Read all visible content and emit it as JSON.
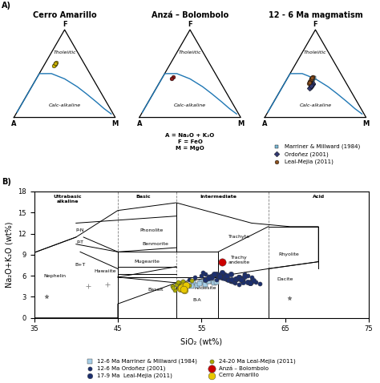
{
  "chart_data": [
    {
      "type": "ternary",
      "panel_label": "A)",
      "title": "Cerro Amarillo",
      "corner_labels": [
        "A",
        "F",
        "M"
      ],
      "field_labels": [
        "Tholeiitic",
        "Calc-alkaline"
      ],
      "boundary": {
        "a": [
          0.02,
          0.06,
          0.1,
          0.15,
          0.2,
          0.28,
          0.38,
          0.5,
          0.62,
          0.74,
          0.85,
          0.93,
          0.97
        ],
        "f": [
          0.04,
          0.1,
          0.18,
          0.27,
          0.35,
          0.44,
          0.5,
          0.5,
          0.46,
          0.38,
          0.26,
          0.14,
          0.06
        ],
        "m": [
          0.94,
          0.84,
          0.72,
          0.58,
          0.45,
          0.28,
          0.12,
          0.001,
          0.001,
          0.001,
          0.001,
          0.001,
          0.001
        ]
      },
      "series": [
        {
          "color": "#c8b000",
          "marker": "circle",
          "a": [
            0.28,
            0.3,
            0.27,
            0.29,
            0.31,
            0.28
          ],
          "f": [
            0.62,
            0.6,
            0.63,
            0.61,
            0.59,
            0.62
          ],
          "m": [
            0.1,
            0.1,
            0.1,
            0.1,
            0.1,
            0.1
          ]
        }
      ]
    },
    {
      "type": "ternary",
      "title": "Anzá – Bolombolo",
      "corner_labels": [
        "A",
        "F",
        "M"
      ],
      "field_labels": [
        "Tholeiitic",
        "Calc-alkaline"
      ],
      "note": "A = Na₂O + K₂O\nF = FeO\nM = MgO",
      "boundary": {
        "a": [
          0.02,
          0.06,
          0.1,
          0.15,
          0.2,
          0.28,
          0.38,
          0.5,
          0.62,
          0.74,
          0.85,
          0.93,
          0.97
        ],
        "f": [
          0.04,
          0.1,
          0.18,
          0.27,
          0.35,
          0.44,
          0.5,
          0.5,
          0.46,
          0.38,
          0.26,
          0.14,
          0.06
        ],
        "m": [
          0.94,
          0.84,
          0.72,
          0.58,
          0.45,
          0.28,
          0.12,
          0.001,
          0.001,
          0.001,
          0.001,
          0.001,
          0.001
        ]
      },
      "series": [
        {
          "color": "#8B1a1a",
          "marker": "circle",
          "a": [
            0.44,
            0.46
          ],
          "f": [
            0.46,
            0.44
          ],
          "m": [
            0.1,
            0.1
          ]
        }
      ]
    },
    {
      "type": "ternary",
      "title": "12 - 6 Ma magmatism",
      "corner_labels": [
        "A",
        "F",
        "M"
      ],
      "field_labels": [
        "Tholeiitic",
        "Calc-alkaline"
      ],
      "legend": "lower center",
      "boundary": {
        "a": [
          0.02,
          0.06,
          0.1,
          0.15,
          0.2,
          0.28,
          0.38,
          0.5,
          0.62,
          0.74,
          0.85,
          0.93,
          0.97
        ],
        "f": [
          0.04,
          0.1,
          0.18,
          0.27,
          0.35,
          0.44,
          0.5,
          0.5,
          0.46,
          0.38,
          0.26,
          0.14,
          0.06
        ],
        "m": [
          0.94,
          0.84,
          0.72,
          0.58,
          0.45,
          0.28,
          0.12,
          0.001,
          0.001,
          0.001,
          0.001,
          0.001,
          0.001
        ]
      },
      "series": [
        {
          "name": "Marriner & Millward (1984)",
          "color": "#7bb8d4",
          "marker": "square",
          "a": [
            0.32,
            0.34,
            0.3,
            0.33,
            0.35,
            0.31,
            0.36,
            0.29,
            0.33,
            0.34
          ],
          "f": [
            0.42,
            0.4,
            0.44,
            0.41,
            0.39,
            0.43,
            0.38,
            0.45,
            0.4,
            0.41
          ],
          "m": [
            0.26,
            0.26,
            0.26,
            0.26,
            0.26,
            0.26,
            0.26,
            0.26,
            0.27,
            0.25
          ]
        },
        {
          "name": "Ordoñez (2001)",
          "color": "#303870",
          "marker": "diamond",
          "a": [
            0.34,
            0.36,
            0.38,
            0.33,
            0.37,
            0.35,
            0.39,
            0.36
          ],
          "f": [
            0.38,
            0.36,
            0.34,
            0.39,
            0.35,
            0.37,
            0.33,
            0.36
          ],
          "m": [
            0.28,
            0.28,
            0.28,
            0.28,
            0.28,
            0.28,
            0.28,
            0.28
          ]
        },
        {
          "name": "Leal-Mejia (2011)",
          "color": "#8B5020",
          "marker": "circle",
          "a": [
            0.32,
            0.34,
            0.3,
            0.36,
            0.33,
            0.35,
            0.31,
            0.37,
            0.32,
            0.34,
            0.33,
            0.35,
            0.3,
            0.36,
            0.31
          ],
          "f": [
            0.44,
            0.42,
            0.46,
            0.4,
            0.43,
            0.41,
            0.45,
            0.39,
            0.44,
            0.42,
            0.43,
            0.41,
            0.46,
            0.4,
            0.45
          ],
          "m": [
            0.24,
            0.24,
            0.24,
            0.24,
            0.24,
            0.24,
            0.24,
            0.24,
            0.24,
            0.24,
            0.24,
            0.24,
            0.24,
            0.24,
            0.24
          ]
        }
      ]
    },
    {
      "type": "scatter",
      "panel_label": "B)",
      "xlabel": "SiO₂ (wt%)",
      "ylabel": "Na₂O+K₂O (wt%)",
      "xlim": [
        35,
        75
      ],
      "ylim": [
        0,
        18
      ],
      "xticks": [
        35,
        45,
        55,
        65,
        75
      ],
      "yticks": [
        0,
        3,
        6,
        9,
        12,
        15,
        18
      ],
      "legend": "lower center",
      "boundaries": [
        {
          "x": [
            35,
            45,
            45,
            52,
            57,
            63,
            69,
            69,
            65.6,
            61,
            52,
            45,
            40,
            35,
            35
          ],
          "y": [
            0,
            0,
            2,
            5,
            5.9,
            7,
            8,
            13,
            13,
            13.5,
            16.4,
            15.3,
            11.5,
            9.3,
            0
          ]
        },
        {
          "x": [
            45,
            45
          ],
          "y": [
            0,
            5.8
          ]
        },
        {
          "x": [
            52,
            52
          ],
          "y": [
            0,
            5
          ]
        },
        {
          "x": [
            57,
            57
          ],
          "y": [
            0,
            5.9
          ]
        },
        {
          "x": [
            63,
            63
          ],
          "y": [
            0,
            7
          ]
        },
        {
          "x": [
            69,
            69
          ],
          "y": [
            7,
            13
          ]
        },
        {
          "x": [
            45,
            48.4
          ],
          "y": [
            5.8,
            5.8
          ]
        },
        {
          "x": [
            48.4,
            52
          ],
          "y": [
            5.8,
            5.8
          ]
        },
        {
          "x": [
            52,
            57
          ],
          "y": [
            5.8,
            5.8
          ]
        },
        {
          "x": [
            45,
            52
          ],
          "y": [
            5.8,
            5.0
          ]
        },
        {
          "x": [
            45,
            52
          ],
          "y": [
            9.4,
            9.4
          ]
        },
        {
          "x": [
            52,
            57
          ],
          "y": [
            9.4,
            9.4
          ]
        },
        {
          "x": [
            52,
            52
          ],
          "y": [
            9.4,
            16.4
          ]
        },
        {
          "x": [
            57,
            63
          ],
          "y": [
            9.4,
            13
          ]
        },
        {
          "x": [
            57,
            57
          ],
          "y": [
            5.9,
            9.4
          ]
        },
        {
          "x": [
            63,
            69
          ],
          "y": [
            13,
            13
          ]
        },
        {
          "x": [
            63,
            69
          ],
          "y": [
            7,
            8
          ]
        },
        {
          "x": [
            45,
            45
          ],
          "y": [
            5.8,
            9.4
          ]
        },
        {
          "x": [
            40.9,
            45
          ],
          "y": [
            11.5,
            9.4
          ]
        },
        {
          "x": [
            40.5,
            45
          ],
          "y": [
            9.4,
            7.0
          ]
        },
        {
          "x": [
            45,
            52
          ],
          "y": [
            5.8,
            7.3
          ]
        },
        {
          "x": [
            45,
            52
          ],
          "y": [
            7.3,
            7.3
          ]
        },
        {
          "x": [
            45,
            52
          ],
          "y": [
            9.4,
            10.0
          ]
        },
        {
          "x": [
            40,
            45
          ],
          "y": [
            10.5,
            9.4
          ]
        },
        {
          "x": [
            35,
            40
          ],
          "y": [
            9.3,
            11.5
          ]
        },
        {
          "x": [
            40,
            52
          ],
          "y": [
            13.5,
            14.5
          ]
        },
        {
          "x": [
            45,
            52
          ],
          "y": [
            6.3,
            6.3
          ]
        }
      ],
      "reference_lines_x": [
        45,
        52,
        63
      ],
      "field_labels": [
        {
          "text": "Nephelin",
          "x": 37.5,
          "y": 6.0
        },
        {
          "text": "P-N",
          "x": 40.5,
          "y": 12.5
        },
        {
          "text": "P-T",
          "x": 40.5,
          "y": 10.8
        },
        {
          "text": "B+T",
          "x": 40.5,
          "y": 7.6
        },
        {
          "text": "Hawaiite",
          "x": 43.5,
          "y": 6.7
        },
        {
          "text": "Phonolite",
          "x": 49.0,
          "y": 12.5
        },
        {
          "text": "Benmorite",
          "x": 49.5,
          "y": 10.5
        },
        {
          "text": "Mugearite",
          "x": 48.5,
          "y": 8.0
        },
        {
          "text": "Basalt",
          "x": 49.5,
          "y": 4.0
        },
        {
          "text": "B-A",
          "x": 54.5,
          "y": 2.5
        },
        {
          "text": "Andesite",
          "x": 55.5,
          "y": 4.2
        },
        {
          "text": "Trachyte",
          "x": 59.5,
          "y": 11.5
        },
        {
          "text": "Trachy\nandesite",
          "x": 59.5,
          "y": 8.2
        },
        {
          "text": "Rhyolite",
          "x": 65.5,
          "y": 9.0
        },
        {
          "text": "Dacite",
          "x": 65.0,
          "y": 5.5
        }
      ],
      "group_labels": [
        {
          "text": "Ultrabasic\nalkaline",
          "x": 39.0,
          "y": 17.5
        },
        {
          "text": "Basic",
          "x": 48.0,
          "y": 17.5
        },
        {
          "text": "Intermediate",
          "x": 57.0,
          "y": 17.5
        },
        {
          "text": "Acid",
          "x": 69.0,
          "y": 17.5
        }
      ],
      "series": [
        {
          "name": "12-6 Ma Marriner & Millward (1984)",
          "color": "#a8d0e8",
          "marker": "square",
          "x": [
            52.5,
            53.2,
            54.0,
            54.5,
            55.0,
            55.5,
            56.0,
            56.5,
            53.8,
            54.8,
            55.8,
            56.8
          ],
          "y": [
            4.4,
            4.7,
            5.0,
            4.6,
            5.1,
            4.8,
            5.2,
            5.0,
            4.5,
            4.9,
            5.2,
            5.1
          ]
        },
        {
          "name": "12-6 Ma Ordoñez (2001)",
          "color": "#1c2f6e",
          "marker": "circle",
          "x": [
            53.5,
            54.2,
            55.0,
            55.5,
            56.0,
            56.5,
            57.0,
            57.5,
            58.0,
            58.5,
            59.0,
            59.5,
            60.0,
            60.5,
            61.0,
            55.2,
            56.8,
            57.8,
            58.8,
            59.8,
            61.5,
            62.0,
            56.2,
            57.2,
            58.2,
            59.2,
            60.2,
            55.8,
            57.4,
            58.6
          ],
          "y": [
            5.5,
            5.8,
            6.0,
            6.2,
            5.9,
            6.3,
            6.1,
            5.7,
            5.4,
            5.2,
            5.0,
            4.8,
            5.5,
            6.0,
            5.8,
            6.5,
            5.5,
            6.2,
            5.3,
            5.7,
            5.1,
            4.9,
            6.0,
            5.8,
            5.4,
            5.6,
            6.2,
            5.9,
            6.0,
            5.5
          ]
        },
        {
          "name": "17-9 Ma  Leal-Mejia (2011)",
          "color": "#1c2f6e",
          "marker": "circle",
          "x": [
            55.5,
            56.2,
            57.0,
            57.8,
            58.5,
            59.2,
            60.0,
            56.8,
            58.2,
            59.5,
            60.8,
            57.5,
            58.8,
            60.2,
            55.8,
            57.2,
            58.6,
            59.8,
            61.0,
            56.5,
            57.9,
            59.1,
            60.5,
            58.0,
            59.5,
            61.2,
            57.2,
            58.5,
            59.8,
            60.8
          ],
          "y": [
            5.5,
            5.8,
            6.0,
            5.7,
            5.3,
            5.6,
            5.1,
            6.2,
            5.4,
            5.8,
            5.0,
            6.5,
            5.2,
            5.9,
            5.7,
            6.1,
            5.5,
            5.4,
            5.2,
            6.3,
            5.9,
            5.6,
            5.1,
            6.0,
            5.8,
            5.3,
            5.9,
            6.2,
            5.5,
            5.0
          ]
        },
        {
          "name": "24-20 Ma Leal-Mejia (2011)",
          "color": "#aaaa00",
          "marker": "circle",
          "x": [
            51.5,
            52.0,
            52.5,
            53.0,
            53.5,
            52.8,
            51.8,
            53.2,
            52.2,
            51.6,
            53.8,
            52.6
          ],
          "y": [
            4.5,
            4.8,
            5.0,
            4.2,
            4.6,
            5.2,
            4.0,
            4.9,
            5.1,
            4.3,
            5.3,
            4.7
          ]
        },
        {
          "name": "Anzá – Bolombolo",
          "color": "#cc0000",
          "marker": "circle",
          "x": [
            57.5
          ],
          "y": [
            8.0
          ]
        },
        {
          "name": "Cerro Amarillo",
          "color": "#e8c800",
          "marker": "circle",
          "x": [
            52.5,
            52.8,
            53.0,
            52.6,
            53.2,
            52.9
          ],
          "y": [
            4.2,
            4.5,
            4.0,
            4.3,
            4.6,
            4.1
          ]
        },
        {
          "color": "#888888",
          "marker": "star",
          "x": [
            36.5,
            65.5
          ],
          "y": [
            3.0,
            2.8
          ]
        },
        {
          "color": "#888888",
          "marker": "plus",
          "x": [
            41.5,
            43.8
          ],
          "y": [
            4.5,
            4.8
          ]
        }
      ]
    }
  ]
}
